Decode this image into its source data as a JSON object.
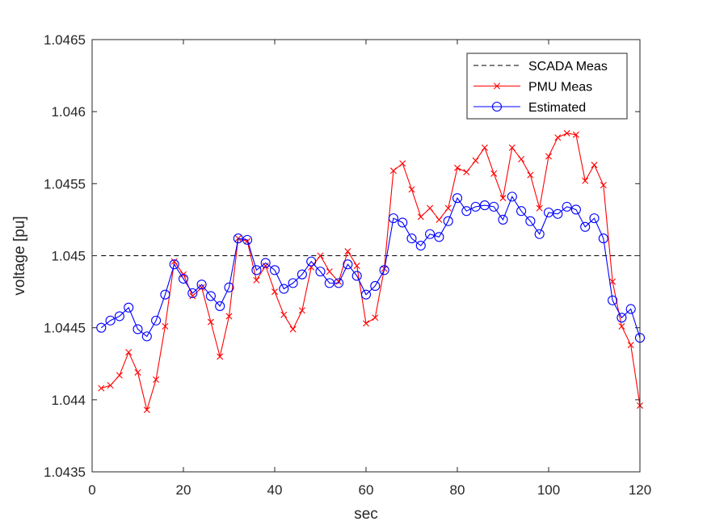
{
  "chart_data": {
    "type": "line",
    "title": "",
    "xlabel": "sec",
    "ylabel": "voltage [pu]",
    "xlim": [
      0,
      120
    ],
    "ylim": [
      1.0435,
      1.0465
    ],
    "x_ticks": [
      0,
      20,
      40,
      60,
      80,
      100,
      120
    ],
    "y_ticks": [
      1.0435,
      1.044,
      1.0445,
      1.045,
      1.0455,
      1.046,
      1.0465
    ],
    "x_tick_labels": [
      "0",
      "20",
      "40",
      "60",
      "80",
      "100",
      "120"
    ],
    "y_tick_labels": [
      "1.0435",
      "1.044",
      "1.0445",
      "1.045",
      "1.0455",
      "1.046",
      "1.0465"
    ],
    "grid": false,
    "legend_position": "top-right",
    "x": [
      2,
      4,
      6,
      8,
      10,
      12,
      14,
      16,
      18,
      20,
      22,
      24,
      26,
      28,
      30,
      32,
      34,
      36,
      38,
      40,
      42,
      44,
      46,
      48,
      50,
      52,
      54,
      56,
      58,
      60,
      62,
      64,
      66,
      68,
      70,
      72,
      74,
      76,
      78,
      80,
      82,
      84,
      86,
      88,
      90,
      92,
      94,
      96,
      98,
      100,
      102,
      104,
      106,
      108,
      110,
      112,
      114,
      116,
      118,
      120
    ],
    "series": [
      {
        "name": "SCADA Meas",
        "color": "#000000",
        "style": "dashed",
        "marker": "none",
        "x": [
          2,
          120
        ],
        "values": [
          1.045,
          1.045
        ]
      },
      {
        "name": "PMU Meas",
        "color": "#ff0000",
        "style": "solid",
        "marker": "x",
        "values": [
          1.04408,
          1.0441,
          1.04417,
          1.04433,
          1.04419,
          1.04393,
          1.04414,
          1.04451,
          1.04496,
          1.04487,
          1.04472,
          1.04478,
          1.04454,
          1.0443,
          1.04458,
          1.04512,
          1.0451,
          1.04483,
          1.04493,
          1.04475,
          1.04459,
          1.04449,
          1.04462,
          1.04492,
          1.045,
          1.04489,
          1.04482,
          1.04503,
          1.04493,
          1.04453,
          1.04457,
          1.04491,
          1.04559,
          1.04564,
          1.04546,
          1.04527,
          1.04533,
          1.04525,
          1.04533,
          1.04561,
          1.04558,
          1.04566,
          1.04575,
          1.04557,
          1.0454,
          1.04575,
          1.04567,
          1.04556,
          1.04533,
          1.04569,
          1.04582,
          1.04585,
          1.04584,
          1.04552,
          1.04563,
          1.04549,
          1.04482,
          1.04451,
          1.04438,
          1.04396
        ]
      },
      {
        "name": "Estimated",
        "color": "#0000ff",
        "style": "solid",
        "marker": "circle",
        "values": [
          1.0445,
          1.04455,
          1.04458,
          1.04464,
          1.04449,
          1.04444,
          1.04455,
          1.04473,
          1.04494,
          1.04484,
          1.04474,
          1.0448,
          1.04472,
          1.04465,
          1.04478,
          1.04512,
          1.04511,
          1.0449,
          1.04495,
          1.0449,
          1.04477,
          1.04481,
          1.04487,
          1.04496,
          1.04489,
          1.04481,
          1.04481,
          1.04494,
          1.04486,
          1.04473,
          1.04479,
          1.0449,
          1.04526,
          1.04523,
          1.04512,
          1.04507,
          1.04515,
          1.04513,
          1.04524,
          1.0454,
          1.04531,
          1.04534,
          1.04535,
          1.04534,
          1.04525,
          1.04541,
          1.04531,
          1.04524,
          1.04515,
          1.0453,
          1.04529,
          1.04534,
          1.04532,
          1.0452,
          1.04526,
          1.04512,
          1.04469,
          1.04457,
          1.04463,
          1.04443
        ]
      }
    ]
  }
}
